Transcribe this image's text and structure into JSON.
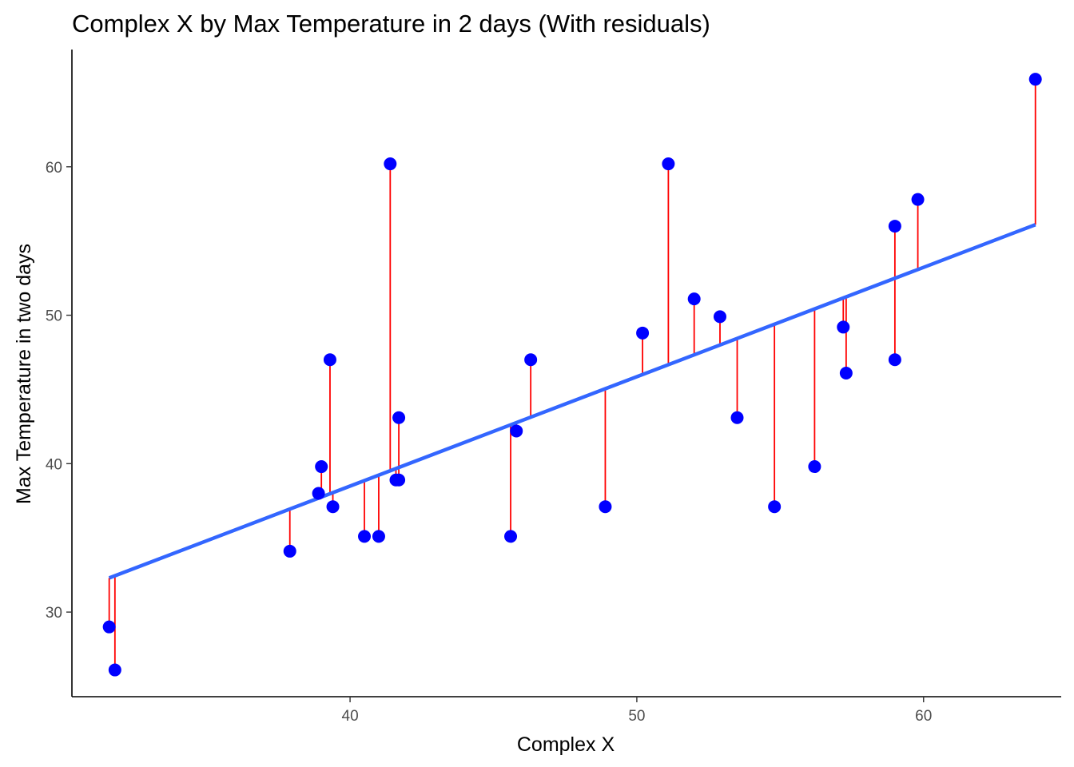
{
  "chart_data": {
    "type": "scatter",
    "title": "Complex X by Max Temperature in 2 days (With residuals)",
    "xlabel": "Complex X",
    "ylabel": "Max Temperature in two days",
    "xlim": [
      30.3,
      64.8
    ],
    "ylim": [
      24.3,
      67.9
    ],
    "xticks": [
      40,
      50,
      60
    ],
    "yticks": [
      30,
      40,
      50,
      60
    ],
    "grid": false,
    "fit_line": {
      "x0": 31.6,
      "y0": 32.3,
      "x1": 63.9,
      "y1": 56.1
    },
    "colors": {
      "points": "#0000ff",
      "fit_line": "#3366ff",
      "residuals": "#ff0000",
      "axis": "#000000"
    },
    "points": [
      {
        "x": 31.6,
        "y": 29.0
      },
      {
        "x": 31.8,
        "y": 26.1
      },
      {
        "x": 37.9,
        "y": 34.1
      },
      {
        "x": 38.9,
        "y": 38.0
      },
      {
        "x": 39.0,
        "y": 39.8
      },
      {
        "x": 39.3,
        "y": 47.0
      },
      {
        "x": 39.4,
        "y": 37.1
      },
      {
        "x": 40.5,
        "y": 35.1
      },
      {
        "x": 41.0,
        "y": 35.1
      },
      {
        "x": 41.4,
        "y": 60.2
      },
      {
        "x": 41.6,
        "y": 38.9
      },
      {
        "x": 41.7,
        "y": 38.9
      },
      {
        "x": 41.7,
        "y": 43.1
      },
      {
        "x": 45.6,
        "y": 35.1
      },
      {
        "x": 45.8,
        "y": 42.2
      },
      {
        "x": 46.3,
        "y": 47.0
      },
      {
        "x": 48.9,
        "y": 37.1
      },
      {
        "x": 50.2,
        "y": 48.8
      },
      {
        "x": 51.1,
        "y": 60.2
      },
      {
        "x": 52.0,
        "y": 51.1
      },
      {
        "x": 52.9,
        "y": 49.9
      },
      {
        "x": 53.5,
        "y": 43.1
      },
      {
        "x": 54.8,
        "y": 37.1
      },
      {
        "x": 56.2,
        "y": 39.8
      },
      {
        "x": 57.2,
        "y": 49.2
      },
      {
        "x": 57.3,
        "y": 46.1
      },
      {
        "x": 59.0,
        "y": 56.0
      },
      {
        "x": 59.0,
        "y": 47.0
      },
      {
        "x": 59.8,
        "y": 57.8
      },
      {
        "x": 63.9,
        "y": 65.9
      }
    ]
  }
}
